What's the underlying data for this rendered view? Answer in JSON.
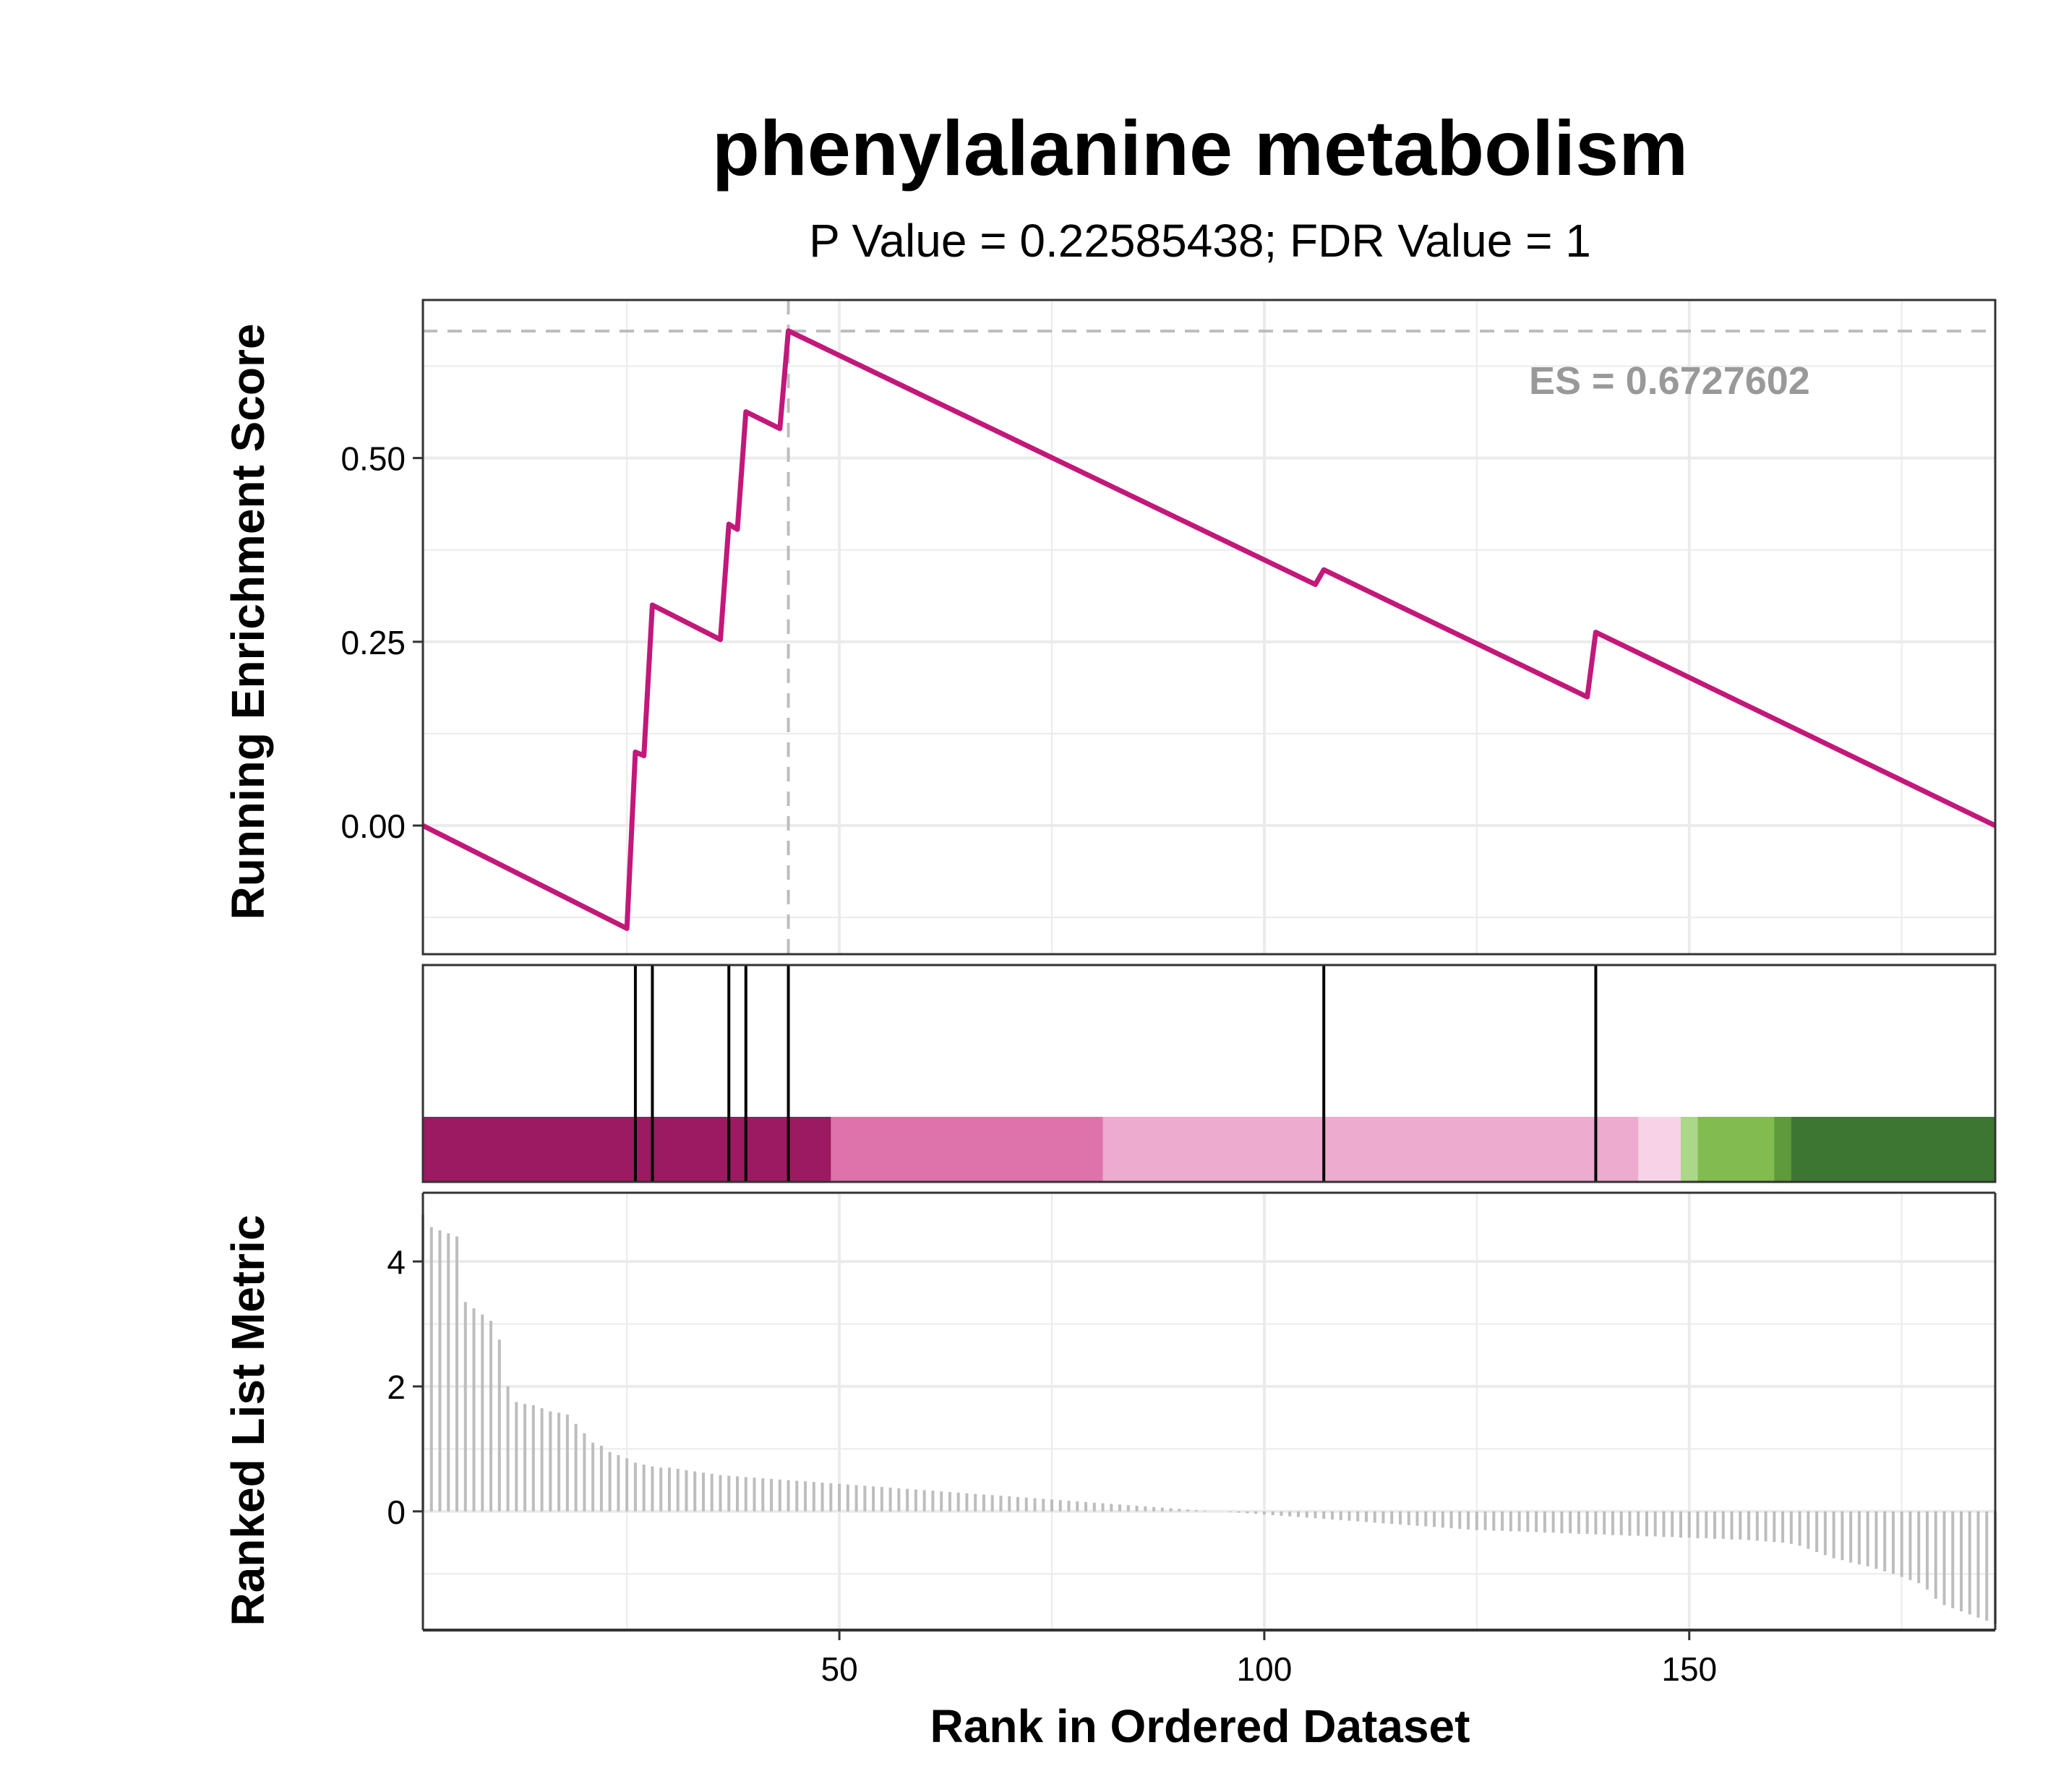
{
  "chart_data": {
    "type": "line",
    "title": "phenylalanine metabolism",
    "subtitle": "P Value = 0.22585438; FDR Value = 1",
    "xlabel": "Rank in Ordered Dataset",
    "xlim": [
      1,
      186
    ],
    "xticks": [
      50,
      100,
      150
    ],
    "grid": true,
    "colors": {
      "curve": "#c2187a",
      "es_guide": "#bdbdbd",
      "es_label": "#999999",
      "metric_bars": "#bdbdbd",
      "hit_lines": "#000000",
      "grid": "#ebebeb",
      "frame": "#333333"
    },
    "enrichment": {
      "ylabel": "Running Enrichment Score",
      "ylim": [
        -0.175,
        0.715
      ],
      "yticks": [
        0.0,
        0.25,
        0.5
      ],
      "ytick_labels": [
        "0.00",
        "0.25",
        "0.50"
      ],
      "es_label": "ES = 0.6727602",
      "es_value": 0.6727602,
      "es_rank": 44,
      "curve_points": [
        [
          1,
          0.0
        ],
        [
          25,
          -0.14
        ],
        [
          26,
          0.1
        ],
        [
          27,
          0.095
        ],
        [
          28,
          0.3
        ],
        [
          36,
          0.253
        ],
        [
          37,
          0.41
        ],
        [
          38,
          0.403
        ],
        [
          39,
          0.563
        ],
        [
          43,
          0.54
        ],
        [
          44,
          0.673
        ],
        [
          106,
          0.328
        ],
        [
          107,
          0.348
        ],
        [
          138,
          0.175
        ],
        [
          139,
          0.263
        ],
        [
          186,
          0.0
        ]
      ]
    },
    "hits": [
      26,
      28,
      37,
      39,
      44,
      107,
      139
    ],
    "color_bands": [
      {
        "from": 1,
        "to": 49,
        "color": "#9c1a62"
      },
      {
        "from": 49,
        "to": 81,
        "color": "#de73ab"
      },
      {
        "from": 81,
        "to": 144,
        "color": "#ecabcf"
      },
      {
        "from": 144,
        "to": 149,
        "color": "#f8d3e8"
      },
      {
        "from": 149,
        "to": 151,
        "color": "#acd68a"
      },
      {
        "from": 151,
        "to": 160,
        "color": "#82bb4f"
      },
      {
        "from": 160,
        "to": 162,
        "color": "#5f9a3c"
      },
      {
        "from": 162,
        "to": 186,
        "color": "#3c7632"
      }
    ],
    "ranked_metric": {
      "ylabel": "Ranked List Metric",
      "ylim": [
        -1.9,
        5.1
      ],
      "yticks": [
        0,
        2,
        4
      ],
      "ytick_labels": [
        "0",
        "2",
        "4"
      ],
      "values": [
        4.75,
        4.55,
        4.5,
        4.45,
        4.4,
        3.35,
        3.25,
        3.15,
        3.05,
        2.75,
        2.0,
        1.75,
        1.72,
        1.7,
        1.65,
        1.6,
        1.58,
        1.55,
        1.4,
        1.25,
        1.1,
        1.05,
        0.95,
        0.9,
        0.85,
        0.78,
        0.75,
        0.72,
        0.7,
        0.7,
        0.68,
        0.66,
        0.64,
        0.62,
        0.6,
        0.58,
        0.57,
        0.56,
        0.55,
        0.54,
        0.53,
        0.52,
        0.51,
        0.5,
        0.49,
        0.48,
        0.47,
        0.46,
        0.45,
        0.44,
        0.43,
        0.42,
        0.41,
        0.4,
        0.39,
        0.38,
        0.37,
        0.36,
        0.35,
        0.34,
        0.33,
        0.32,
        0.31,
        0.3,
        0.29,
        0.28,
        0.27,
        0.26,
        0.25,
        0.24,
        0.23,
        0.22,
        0.21,
        0.2,
        0.19,
        0.18,
        0.17,
        0.16,
        0.15,
        0.14,
        0.13,
        0.12,
        0.11,
        0.1,
        0.09,
        0.08,
        0.07,
        0.06,
        0.05,
        0.04,
        0.03,
        0.02,
        0.01,
        0.0,
        0.0,
        -0.01,
        -0.02,
        -0.03,
        -0.04,
        -0.05,
        -0.06,
        -0.07,
        -0.08,
        -0.09,
        -0.1,
        -0.11,
        -0.12,
        -0.13,
        -0.14,
        -0.15,
        -0.16,
        -0.17,
        -0.18,
        -0.19,
        -0.2,
        -0.21,
        -0.22,
        -0.23,
        -0.24,
        -0.25,
        -0.26,
        -0.27,
        -0.28,
        -0.29,
        -0.3,
        -0.3,
        -0.31,
        -0.31,
        -0.32,
        -0.32,
        -0.33,
        -0.33,
        -0.34,
        -0.34,
        -0.35,
        -0.35,
        -0.36,
        -0.36,
        -0.37,
        -0.37,
        -0.38,
        -0.38,
        -0.39,
        -0.39,
        -0.4,
        -0.4,
        -0.41,
        -0.41,
        -0.42,
        -0.42,
        -0.43,
        -0.43,
        -0.44,
        -0.44,
        -0.45,
        -0.45,
        -0.46,
        -0.47,
        -0.48,
        -0.49,
        -0.5,
        -0.52,
        -0.55,
        -0.6,
        -0.65,
        -0.7,
        -0.75,
        -0.78,
        -0.82,
        -0.85,
        -0.88,
        -0.92,
        -0.96,
        -1.0,
        -1.05,
        -1.1,
        -1.15,
        -1.25,
        -1.4,
        -1.5,
        -1.55,
        -1.6,
        -1.65,
        -1.7,
        -1.75,
        -1.8
      ]
    }
  }
}
